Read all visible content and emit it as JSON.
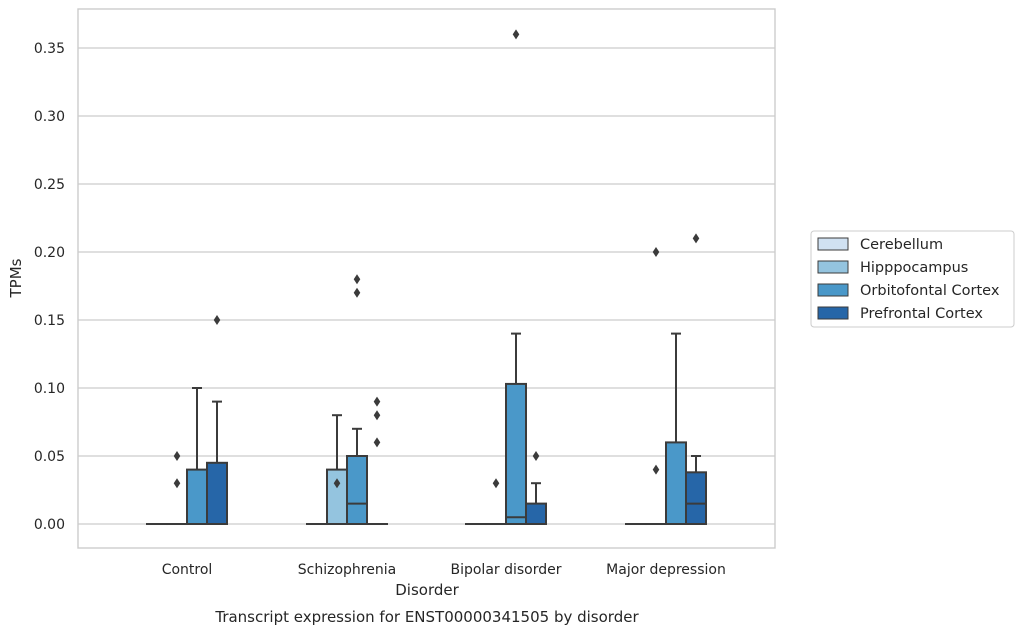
{
  "chart_data": {
    "type": "box",
    "title": "",
    "caption": "Transcript expression for ENST00000341505 by disorder",
    "xlabel": "Disorder",
    "ylabel": "TPMs",
    "ylim": [
      -0.018,
      0.378
    ],
    "yticks": [
      "0.00",
      "0.05",
      "0.10",
      "0.15",
      "0.20",
      "0.25",
      "0.30",
      "0.35"
    ],
    "ytick_values": [
      0,
      0.05,
      0.1,
      0.15,
      0.2,
      0.25,
      0.3,
      0.35
    ],
    "grid": "horizontal",
    "legend_position": "right",
    "categories": [
      "Control",
      "Schizophrenia",
      "Bipolar disorder",
      "Major depression"
    ],
    "series": [
      {
        "name": "Cerebellum",
        "color": "#d0e1f2",
        "boxes": [
          {
            "min": 0,
            "q1": 0,
            "median": 0,
            "q3": 0,
            "max": 0,
            "outliers": []
          },
          {
            "min": 0,
            "q1": 0,
            "median": 0,
            "q3": 0,
            "max": 0,
            "outliers": []
          },
          {
            "min": 0,
            "q1": 0,
            "median": 0,
            "q3": 0,
            "max": 0,
            "outliers": []
          },
          {
            "min": 0,
            "q1": 0,
            "median": 0,
            "q3": 0,
            "max": 0,
            "outliers": []
          }
        ]
      },
      {
        "name": "Hipppocampus",
        "color": "#94c4df",
        "boxes": [
          {
            "min": 0,
            "q1": 0,
            "median": 0,
            "q3": 0,
            "max": 0,
            "outliers": [
              0.03,
              0.05
            ]
          },
          {
            "min": 0,
            "q1": 0,
            "median": 0,
            "q3": 0.04,
            "max": 0.08,
            "outliers": [
              0.03
            ]
          },
          {
            "min": 0,
            "q1": 0,
            "median": 0,
            "q3": 0,
            "max": 0,
            "outliers": [
              0.03
            ]
          },
          {
            "min": 0,
            "q1": 0,
            "median": 0,
            "q3": 0,
            "max": 0,
            "outliers": [
              0.04,
              0.2
            ]
          }
        ]
      },
      {
        "name": "Orbitofontal Cortex",
        "color": "#4a98c9",
        "boxes": [
          {
            "min": 0,
            "q1": 0,
            "median": 0,
            "q3": 0.04,
            "max": 0.1,
            "outliers": []
          },
          {
            "min": 0,
            "q1": 0,
            "median": 0.015,
            "q3": 0.05,
            "max": 0.07,
            "outliers": [
              0.17,
              0.18
            ]
          },
          {
            "min": 0,
            "q1": 0,
            "median": 0.005,
            "q3": 0.103,
            "max": 0.14,
            "outliers": [
              0.36
            ]
          },
          {
            "min": 0,
            "q1": 0,
            "median": 0,
            "q3": 0.06,
            "max": 0.14,
            "outliers": []
          }
        ]
      },
      {
        "name": "Prefrontal Cortex",
        "color": "#2666a8",
        "boxes": [
          {
            "min": 0,
            "q1": 0,
            "median": 0,
            "q3": 0.045,
            "max": 0.09,
            "outliers": [
              0.15
            ]
          },
          {
            "min": 0,
            "q1": 0,
            "median": 0,
            "q3": 0,
            "max": 0,
            "outliers": [
              0.06,
              0.08,
              0.09
            ]
          },
          {
            "min": 0,
            "q1": 0,
            "median": 0,
            "q3": 0.015,
            "max": 0.03,
            "outliers": [
              0.05
            ]
          },
          {
            "min": 0,
            "q1": 0,
            "median": 0.015,
            "q3": 0.038,
            "max": 0.05,
            "outliers": [
              0.21
            ]
          }
        ]
      }
    ]
  }
}
